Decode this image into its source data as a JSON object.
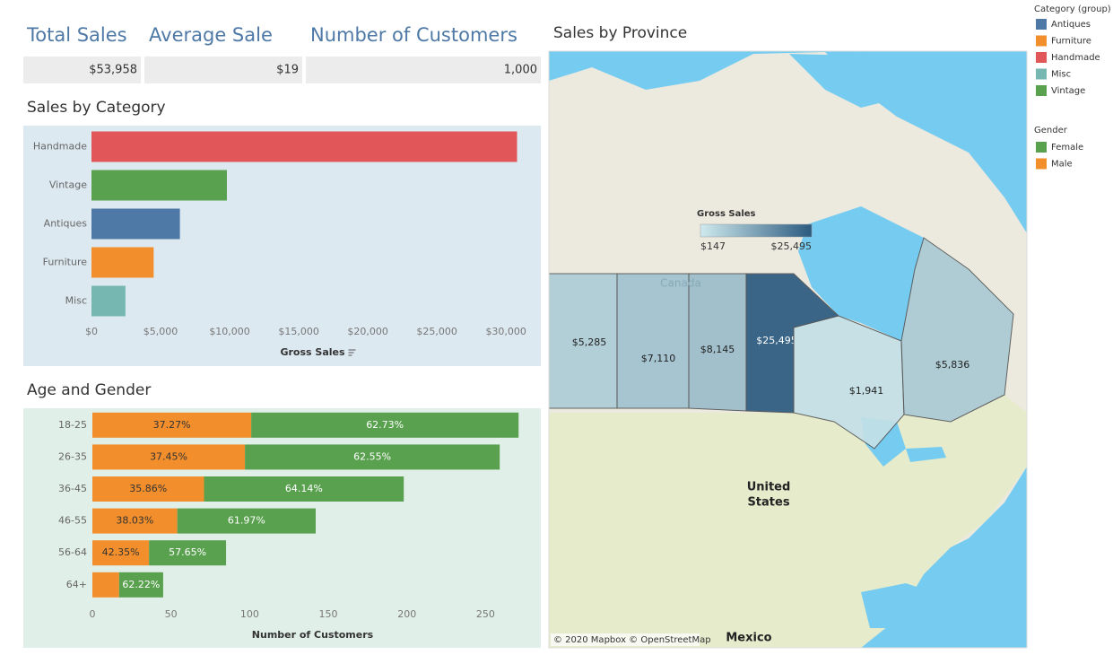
{
  "kpis": [
    {
      "title": "Total Sales",
      "value": "$53,958"
    },
    {
      "title": "Average Sale",
      "value": "$19"
    },
    {
      "title": "Number of Customers",
      "value": "1,000"
    }
  ],
  "chart_data": [
    {
      "type": "bar",
      "orientation": "horizontal",
      "title": "Sales by Category",
      "categories": [
        "Handmade",
        "Vintage",
        "Antiques",
        "Furniture",
        "Misc"
      ],
      "values": [
        30800,
        9800,
        6400,
        4500,
        2458
      ],
      "colors": [
        "#e15759",
        "#59a14f",
        "#4e79a7",
        "#f28e2b",
        "#76b7b2"
      ],
      "x_label": "Gross Sales",
      "xlim": [
        0,
        32000
      ],
      "xticks": [
        {
          "value": 0,
          "label": "$0"
        },
        {
          "value": 5000,
          "label": "$5,000"
        },
        {
          "value": 10000,
          "label": "$10,000"
        },
        {
          "value": 15000,
          "label": "$15,000"
        },
        {
          "value": 20000,
          "label": "$20,000"
        },
        {
          "value": 25000,
          "label": "$25,000"
        },
        {
          "value": 30000,
          "label": "$30,000"
        }
      ],
      "grid": false
    },
    {
      "type": "bar",
      "orientation": "horizontal",
      "stacked": true,
      "title": "Age and Gender",
      "categories": [
        "18-25",
        "26-35",
        "36-45",
        "46-55",
        "56-64",
        "64+"
      ],
      "series": [
        {
          "name": "Male",
          "color": "#f28e2b",
          "values": [
            101,
            97,
            71,
            54,
            36,
            17
          ],
          "share_labels": [
            "37.27%",
            "37.45%",
            "35.86%",
            "38.03%",
            "42.35%",
            null
          ]
        },
        {
          "name": "Female",
          "color": "#59a14f",
          "values": [
            170,
            162,
            127,
            88,
            49,
            28
          ],
          "share_labels": [
            "62.73%",
            "62.55%",
            "64.14%",
            "61.97%",
            "57.65%",
            "62.22%"
          ]
        }
      ],
      "x_label": "Number of Customers",
      "xlim": [
        0,
        280
      ],
      "xticks": [
        0,
        50,
        100,
        150,
        200,
        250
      ],
      "grid": false
    }
  ],
  "map": {
    "title": "Sales by Province",
    "color_legend": {
      "title": "Gross Sales",
      "min": {
        "value": 147,
        "label": "$147"
      },
      "max": {
        "value": 25495,
        "label": "$25,495"
      },
      "colors": [
        "#cfeaee",
        "#2b5a7f"
      ]
    },
    "provinces": [
      {
        "value": 5285,
        "label": "$5,285"
      },
      {
        "value": 7110,
        "label": "$7,110"
      },
      {
        "value": 8145,
        "label": "$8,145"
      },
      {
        "value": 25495,
        "label": "$25,495"
      },
      {
        "value": 1941,
        "label": "$1,941"
      },
      {
        "value": 5836,
        "label": "$5,836"
      }
    ],
    "place_labels": [
      "Canada",
      "United",
      "States",
      "Mexico"
    ],
    "attribution": "© 2020 Mapbox © OpenStreetMap"
  },
  "legends": {
    "category_title": "Category (group)",
    "gender_title": "Gender"
  }
}
